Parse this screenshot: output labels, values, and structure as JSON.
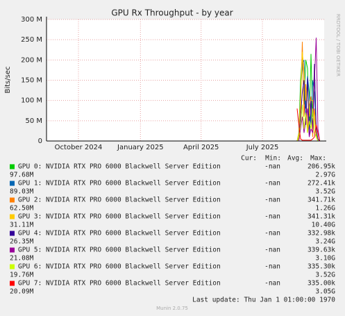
{
  "chart_data": {
    "type": "line",
    "title": "GPU Rx Throughput - by year",
    "y_label": "Bits/sec",
    "side_label": "RRDTOOL / TOBI OETIKER",
    "xlim": [
      1723646800,
      1759246800
    ],
    "xticks": [
      {
        "value": 1727740800,
        "label": "October 2024"
      },
      {
        "value": 1735689600,
        "label": "January 2025"
      },
      {
        "value": 1743465600,
        "label": "April 2025"
      },
      {
        "value": 1751328000,
        "label": "July 2025"
      }
    ],
    "ylim": [
      0,
      300000000
    ],
    "yticks": [
      0,
      {
        "value": 50000000,
        "label": "50 M"
      },
      {
        "value": 100000000,
        "label": "100 M"
      },
      {
        "value": 150000000,
        "label": "150 M"
      },
      {
        "value": 200000000,
        "label": "200 M"
      },
      {
        "value": 250000000,
        "label": "250 M"
      },
      {
        "value": 300000000,
        "label": "300 M"
      }
    ],
    "grid": true,
    "x": [
      1755775800,
      1755998300,
      1756220800,
      1756443300,
      1756665800,
      1756888300,
      1757110800,
      1757333300,
      1757555800,
      1757778300,
      1758000800,
      1758223300,
      1758445800,
      1758668300,
      1758890800,
      1759113300
    ],
    "legend_headers": [
      "Cur:",
      "Min:",
      "Avg:",
      "Max:"
    ],
    "series": [
      {
        "name": "GPU 0: NVIDIA RTX PRO 6000 Blackwell Server Edition",
        "color": "#00cc00",
        "cur": "-nan",
        "min": "206.95k",
        "avg": "97.68M",
        "max": "2.97G",
        "values": [
          0,
          20000000.0,
          150000000.0,
          210000000.0,
          90000000.0,
          200000000.0,
          180000000.0,
          30000000.0,
          215000000.0,
          60000000.0,
          190000000.0,
          10000000.0,
          0,
          0,
          0,
          0
        ]
      },
      {
        "name": "GPU 1: NVIDIA RTX PRO 6000 Blackwell Server Edition",
        "color": "#0066b3",
        "cur": "-nan",
        "min": "272.41k",
        "avg": "89.03M",
        "max": "3.52G",
        "values": [
          0,
          10000000.0,
          120000000.0,
          190000000.0,
          200000000.0,
          80000000.0,
          160000000.0,
          120000000.0,
          40000000.0,
          150000000.0,
          120000000.0,
          30000000.0,
          0,
          0,
          0,
          0
        ]
      },
      {
        "name": "GPU 2: NVIDIA RTX PRO 6000 Blackwell Server Edition",
        "color": "#ff8000",
        "cur": "-nan",
        "min": "341.71k",
        "avg": "62.50M",
        "max": "1.26G",
        "values": [
          0,
          5000000.0,
          80000000.0,
          245000000.0,
          60000000.0,
          140000000.0,
          20000000.0,
          90000000.0,
          110000000.0,
          10000000.0,
          80000000.0,
          20000000.0,
          0,
          0,
          0,
          0
        ]
      },
      {
        "name": "GPU 3: NVIDIA RTX PRO 6000 Blackwell Server Edition",
        "color": "#ffcc00",
        "cur": "-nan",
        "min": "341.31k",
        "avg": "31.11M",
        "max": "10.40G",
        "values": [
          0,
          20000000.0,
          110000000.0,
          220000000.0,
          170000000.0,
          100000000.0,
          140000000.0,
          60000000.0,
          100000000.0,
          100000000.0,
          50000000.0,
          20000000.0,
          0,
          0,
          0,
          0
        ]
      },
      {
        "name": "GPU 4: NVIDIA RTX PRO 6000 Blackwell Server Edition",
        "color": "#330099",
        "cur": "-nan",
        "min": "332.98k",
        "avg": "26.35M",
        "max": "3.24G",
        "values": [
          0,
          10000000.0,
          60000000.0,
          120000000.0,
          150000000.0,
          40000000.0,
          155000000.0,
          10000000.0,
          100000000.0,
          30000000.0,
          190000000.0,
          30000000.0,
          5000000.0,
          0,
          0,
          0
        ]
      },
      {
        "name": "GPU 5: NVIDIA RTX PRO 6000 Blackwell Server Edition",
        "color": "#990099",
        "cur": "-nan",
        "min": "339.63k",
        "avg": "21.08M",
        "max": "3.10G",
        "values": [
          0,
          0,
          30000000.0,
          60000000.0,
          20000000.0,
          50000000.0,
          80000000.0,
          10000000.0,
          30000000.0,
          20000000.0,
          150000000.0,
          255000000.0,
          30000000.0,
          0,
          0,
          0
        ]
      },
      {
        "name": "GPU 6: NVIDIA RTX PRO 6000 Blackwell Server Edition",
        "color": "#ccff00",
        "cur": "-nan",
        "min": "335.30k",
        "avg": "19.76M",
        "max": "3.52G",
        "values": [
          0,
          10000000.0,
          40000000.0,
          90000000.0,
          30000000.0,
          70000000.0,
          20000000.0,
          50000000.0,
          30000000.0,
          80000000.0,
          20000000.0,
          10000000.0,
          0,
          0,
          0,
          0
        ]
      },
      {
        "name": "GPU 7: NVIDIA RTX PRO 6000 Blackwell Server Edition",
        "color": "#ff0000",
        "cur": "-nan",
        "min": "335.00k",
        "avg": "20.09M",
        "max": "3.05G",
        "values": [
          80000000.0,
          40000000.0,
          5000000.0,
          2000000.0,
          2000000.0,
          2000000.0,
          2000000.0,
          2000000.0,
          2000000.0,
          5000000.0,
          10000000.0,
          40000000.0,
          20000000.0,
          0,
          0,
          0
        ]
      }
    ],
    "last_update": "Last update: Thu Jan  1 01:00:00 1970",
    "footer": "Munin 2.0.75"
  }
}
